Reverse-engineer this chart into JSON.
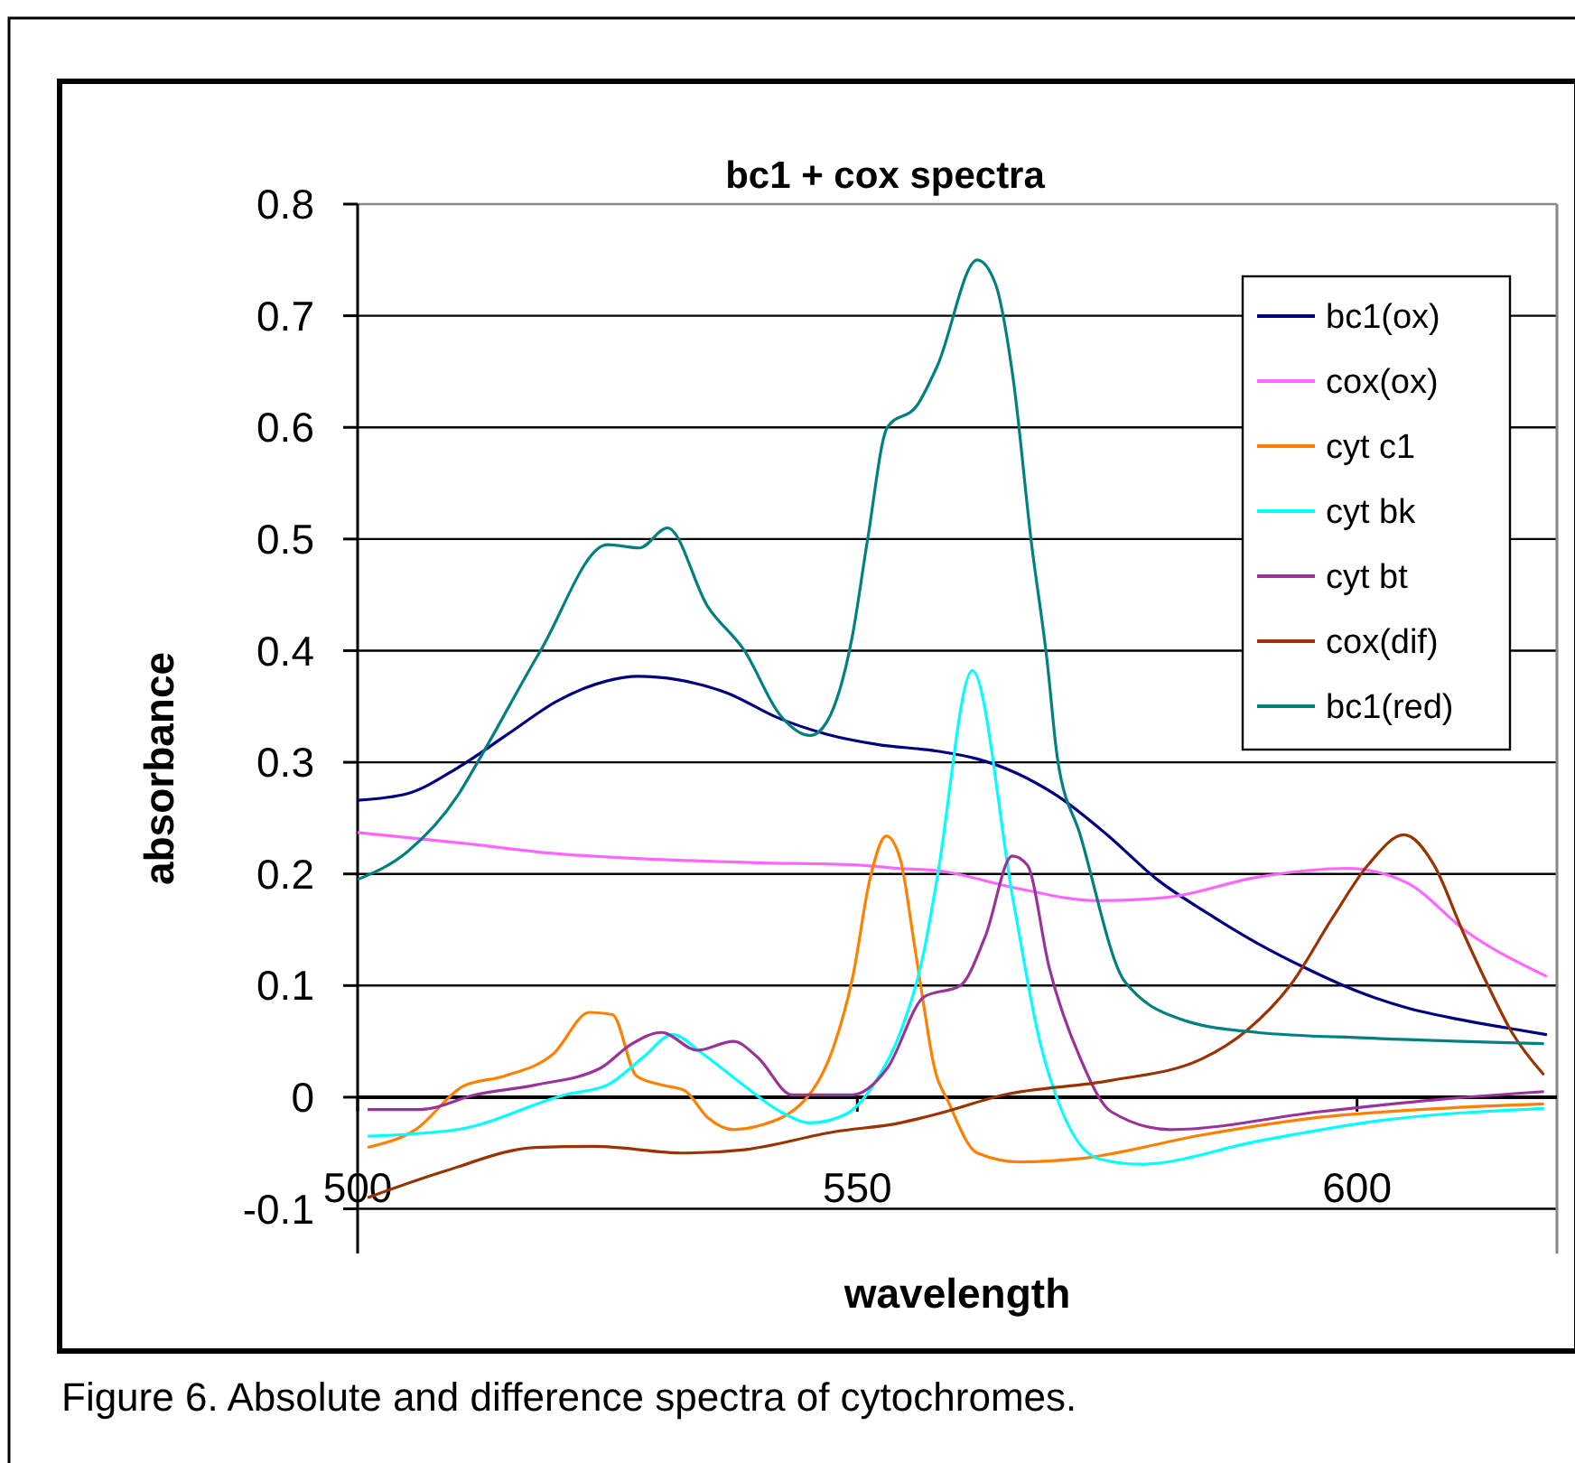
{
  "chart_data": {
    "type": "line",
    "title": "bc1 + cox spectra",
    "xlabel": "wavelength",
    "ylabel": "absorbance",
    "annotations": [
      "Figure 6. Absolute and difference spectra of cytochromes."
    ],
    "xlim": [
      500,
      620
    ],
    "xticks": [
      500,
      550,
      600
    ],
    "ylim": [
      -0.14,
      0.8
    ],
    "yticks": [
      -0.1,
      0,
      0.1,
      0.2,
      0.3,
      0.4,
      0.5,
      0.6,
      0.7,
      0.8
    ],
    "grid": "y",
    "legend": "top right",
    "marker": "none",
    "line_style": "solid",
    "series": [
      {
        "name": "bc1(ox)",
        "color": "#000080",
        "x": [
          500,
          505,
          510,
          515,
          520,
          525,
          528,
          532,
          537,
          542,
          547,
          552,
          558,
          562,
          566,
          570,
          575,
          580,
          585,
          590,
          595,
          600,
          605,
          610,
          615,
          619
        ],
        "values": [
          0.266,
          0.272,
          0.295,
          0.325,
          0.355,
          0.373,
          0.377,
          0.374,
          0.362,
          0.34,
          0.325,
          0.316,
          0.31,
          0.303,
          0.29,
          0.27,
          0.235,
          0.195,
          0.165,
          0.138,
          0.115,
          0.095,
          0.08,
          0.07,
          0.062,
          0.056
        ]
      },
      {
        "name": "cox(ox)",
        "color": "#ff66ff",
        "x": [
          500,
          510,
          520,
          530,
          540,
          550,
          554,
          558,
          566,
          574,
          581,
          590,
          599,
          605,
          611,
          619
        ],
        "values": [
          0.237,
          0.228,
          0.218,
          0.213,
          0.21,
          0.208,
          0.205,
          0.203,
          0.187,
          0.176,
          0.179,
          0.197,
          0.205,
          0.192,
          0.148,
          0.108
        ]
      },
      {
        "name": "cyt c1",
        "color": "#ff8000",
        "x": [
          501,
          505.8,
          510.6,
          514.7,
          519.6,
          523.2,
          525.5,
          527.9,
          530.4,
          532.7,
          535,
          537.6,
          540,
          544.8,
          547.7,
          549.5,
          551.3,
          552.9,
          554.3,
          555.6,
          556.7,
          557.6,
          559.2,
          562,
          566.3,
          572.3,
          584.4,
          596.3,
          608.3,
          618.7
        ],
        "values": [
          -0.045,
          -0.029,
          0.01,
          0.019,
          0.039,
          0.076,
          0.074,
          0.019,
          0.011,
          0.006,
          -0.018,
          -0.029,
          -0.026,
          -0.002,
          0.047,
          0.106,
          0.197,
          0.234,
          0.213,
          0.143,
          0.079,
          0.031,
          -0.006,
          -0.05,
          -0.058,
          -0.055,
          -0.034,
          -0.018,
          -0.01,
          -0.006
        ]
      },
      {
        "name": "cyt bk",
        "color": "#00ffff",
        "x": [
          501,
          510,
          520.7,
          525,
          528.6,
          531.5,
          534.5,
          538.7,
          542.3,
          545.3,
          548.9,
          551.9,
          554.3,
          556.7,
          558,
          561.5,
          565.6,
          568.2,
          570.5,
          574.1,
          578.2,
          590.3,
          602.3,
          618.7
        ],
        "values": [
          -0.035,
          -0.029,
          0.002,
          0.011,
          0.036,
          0.056,
          0.039,
          0.01,
          -0.013,
          -0.023,
          -0.015,
          0.015,
          0.058,
          0.132,
          0.197,
          0.382,
          0.176,
          0.052,
          -0.013,
          -0.055,
          -0.06,
          -0.039,
          -0.021,
          -0.01
        ]
      },
      {
        "name": "cyt bt",
        "color": "#993399",
        "x": [
          501,
          506.3,
          511.7,
          517.8,
          524.3,
          527.3,
          530.4,
          534,
          537.6,
          540,
          543.5,
          549.5,
          553,
          556.7,
          560.3,
          562.8,
          565.5,
          567,
          569.2,
          572.3,
          575.4,
          581.3,
          596.3,
          608.3,
          618.7
        ],
        "values": [
          -0.011,
          -0.011,
          0.002,
          0.011,
          0.026,
          0.047,
          0.058,
          0.042,
          0.05,
          0.036,
          0.002,
          0.002,
          0.026,
          0.09,
          0.1,
          0.144,
          0.216,
          0.208,
          0.116,
          0.035,
          -0.013,
          -0.029,
          -0.013,
          -0.002,
          0.005
        ]
      },
      {
        "name": "cox(dif)",
        "color": "#993300",
        "x": [
          501,
          508.8,
          517.8,
          523.7,
          532.7,
          538.7,
          547.7,
          554.3,
          558,
          564.6,
          575.4,
          584.4,
          589,
          593.3,
          597.5,
          601.1,
          604.7,
          607.7,
          610.6,
          613.1,
          615.5,
          618.7
        ],
        "values": [
          -0.09,
          -0.066,
          -0.045,
          -0.044,
          -0.05,
          -0.047,
          -0.031,
          -0.023,
          -0.015,
          0.002,
          0.015,
          0.034,
          0.06,
          0.1,
          0.16,
          0.208,
          0.235,
          0.208,
          0.148,
          0.1,
          0.058,
          0.02
        ]
      },
      {
        "name": "bc1(red)",
        "color": "#008080",
        "x": [
          500,
          505,
          510,
          512,
          518.3,
          525,
          528.2,
          531,
          535,
          538.7,
          542.3,
          545.3,
          547,
          549.5,
          551,
          553,
          556,
          558,
          562,
          563.8,
          565.6,
          567.4,
          569,
          570,
          572.3,
          576.8,
          583,
          590,
          601,
          618.7
        ],
        "values": [
          0.195,
          0.22,
          0.27,
          0.3,
          0.4,
          0.495,
          0.492,
          0.51,
          0.44,
          0.4,
          0.342,
          0.324,
          0.337,
          0.413,
          0.498,
          0.6,
          0.62,
          0.655,
          0.75,
          0.729,
          0.643,
          0.498,
          0.39,
          0.305,
          0.235,
          0.103,
          0.068,
          0.058,
          0.053,
          0.048
        ]
      }
    ]
  }
}
